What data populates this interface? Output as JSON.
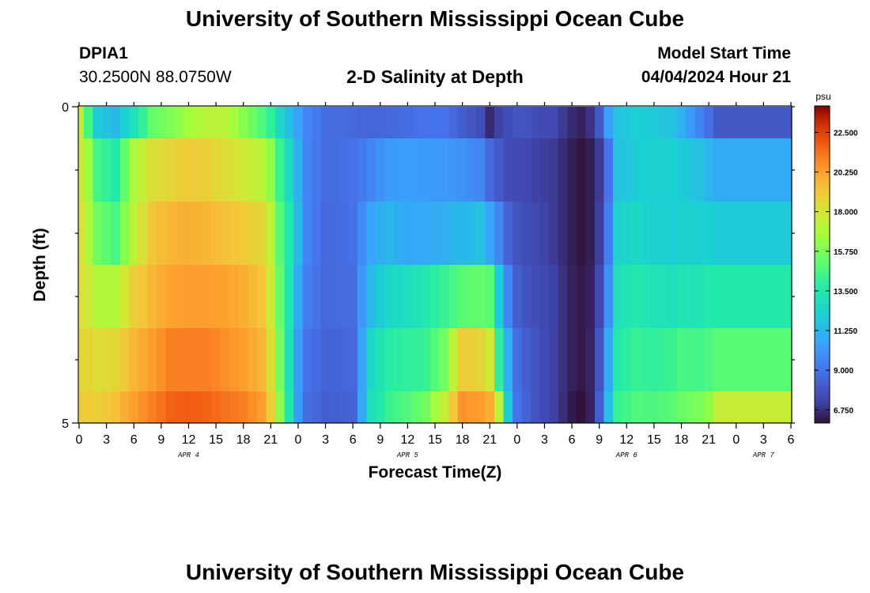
{
  "header": {
    "title": "University of Southern Mississippi Ocean Cube",
    "station": "DPIA1",
    "coords": "30.2500N  88.0750W",
    "plot_title": "2-D Salinity at Depth",
    "start_label": "Model Start Time",
    "start_value": "04/04/2024 Hour 21"
  },
  "footer": {
    "title": "University of Southern Mississippi Ocean Cube"
  },
  "chart_data": {
    "type": "heatmap",
    "xlabel": "Forecast Time(Z)",
    "ylabel": "Depth (ft)",
    "x_hours": [
      0,
      1,
      2,
      3,
      4,
      5,
      6,
      7,
      8,
      9,
      10,
      11,
      12,
      13,
      14,
      15,
      16,
      17,
      18,
      19,
      20,
      21,
      22,
      23,
      24,
      25,
      26,
      27,
      28,
      29,
      30,
      31,
      32,
      33,
      34,
      35,
      36,
      37,
      38,
      39,
      40,
      41,
      42,
      43,
      44,
      45,
      46,
      47,
      48,
      49,
      50,
      51,
      52,
      53,
      54,
      55,
      56,
      57,
      58,
      59,
      60,
      61,
      62,
      63,
      64,
      65,
      66,
      67,
      68,
      69,
      70,
      71,
      72,
      73,
      74,
      75,
      76,
      77,
      78
    ],
    "x_tick_labels": [
      "0",
      "3",
      "6",
      "9",
      "12",
      "15",
      "18",
      "21",
      "0",
      "3",
      "6",
      "9",
      "12",
      "15",
      "18",
      "21",
      "0",
      "3",
      "6",
      "9",
      "12",
      "15",
      "18",
      "21",
      "0",
      "3",
      "6"
    ],
    "date_labels": [
      {
        "label": "APR 4",
        "hour": 12
      },
      {
        "label": "APR 5",
        "hour": 36
      },
      {
        "label": "APR 6",
        "hour": 60
      },
      {
        "label": "APR 7",
        "hour": 75
      }
    ],
    "y_tick_labels": [
      "0",
      "5"
    ],
    "ylim": [
      0,
      5
    ],
    "depth_layers": [
      "0-0.5",
      "0.5-1.5",
      "1.5-2.5",
      "2.5-3.5",
      "3.5-4.5",
      "4.5-5"
    ],
    "colorbar": {
      "unit": "psu",
      "ticks": [
        "22.500",
        "20.250",
        "18.000",
        "15.750",
        "13.500",
        "11.250",
        "9.000",
        "6.750"
      ],
      "range": [
        6.0,
        24.0
      ]
    },
    "keyframes": [
      [
        0,
        [
          17.5,
          17.8,
          18.3,
          18.3,
          18.6,
          19.0
        ]
      ],
      [
        1,
        [
          14.5,
          16.5,
          17.0,
          17.8,
          18.6,
          19.0
        ]
      ],
      [
        2,
        [
          12.0,
          14.5,
          15.5,
          17.0,
          18.3,
          18.8
        ]
      ],
      [
        4,
        [
          11.3,
          13.6,
          14.6,
          17.0,
          18.6,
          19.3
        ]
      ],
      [
        6,
        [
          13.0,
          16.8,
          17.3,
          18.8,
          19.6,
          20.3
        ]
      ],
      [
        8,
        [
          15.2,
          18.3,
          19.2,
          19.6,
          20.3,
          21.0
        ]
      ],
      [
        10,
        [
          15.8,
          18.6,
          19.6,
          20.2,
          21.0,
          21.7
        ]
      ],
      [
        12,
        [
          16.6,
          19.0,
          19.8,
          20.3,
          21.0,
          21.8
        ]
      ],
      [
        14,
        [
          17.2,
          18.8,
          19.6,
          20.3,
          21.0,
          21.7
        ]
      ],
      [
        16,
        [
          17.2,
          18.3,
          19.3,
          20.2,
          20.7,
          21.3
        ]
      ],
      [
        18,
        [
          16.0,
          17.8,
          19.0,
          19.8,
          20.3,
          21.0
        ]
      ],
      [
        20,
        [
          14.8,
          17.2,
          18.6,
          19.2,
          19.6,
          20.3
        ]
      ],
      [
        21,
        [
          14.0,
          16.2,
          17.3,
          17.8,
          18.3,
          19.0
        ]
      ],
      [
        22,
        [
          12.6,
          14.3,
          15.0,
          15.3,
          15.6,
          16.2
        ]
      ],
      [
        23,
        [
          11.5,
          12.8,
          13.5,
          13.3,
          13.0,
          13.3
        ]
      ],
      [
        24,
        [
          10.5,
          11.0,
          11.3,
          10.8,
          10.3,
          10.3
        ]
      ],
      [
        25,
        [
          9.6,
          9.6,
          9.6,
          9.3,
          9.0,
          8.8
        ]
      ],
      [
        27,
        [
          8.8,
          8.7,
          8.6,
          8.6,
          8.4,
          8.2
        ]
      ],
      [
        30,
        [
          8.6,
          8.9,
          8.9,
          8.8,
          8.6,
          8.4
        ]
      ],
      [
        32,
        [
          8.5,
          9.6,
          10.6,
          11.4,
          12.6,
          13.0
        ]
      ],
      [
        34,
        [
          8.6,
          10.3,
          11.3,
          12.6,
          13.8,
          14.3
        ]
      ],
      [
        36,
        [
          8.8,
          10.4,
          10.6,
          12.9,
          14.0,
          14.8
        ]
      ],
      [
        38,
        [
          9.0,
          10.3,
          10.8,
          13.5,
          14.2,
          15.6
        ]
      ],
      [
        40,
        [
          9.0,
          10.2,
          11.0,
          14.2,
          15.6,
          17.6
        ]
      ],
      [
        42,
        [
          8.2,
          10.0,
          11.3,
          15.0,
          19.0,
          20.6
        ]
      ],
      [
        44,
        [
          7.6,
          9.6,
          11.6,
          15.2,
          18.6,
          20.3
        ]
      ],
      [
        45,
        [
          6.6,
          8.6,
          10.6,
          15.0,
          17.8,
          19.8
        ]
      ],
      [
        46,
        [
          7.2,
          8.0,
          9.6,
          12.0,
          14.0,
          17.3
        ]
      ],
      [
        47,
        [
          7.6,
          7.6,
          8.4,
          9.6,
          11.0,
          12.0
        ]
      ],
      [
        48,
        [
          7.8,
          7.5,
          7.8,
          8.2,
          8.8,
          9.0
        ]
      ],
      [
        49,
        [
          7.8,
          7.4,
          7.6,
          7.8,
          8.2,
          8.4
        ]
      ],
      [
        50,
        [
          7.6,
          7.2,
          7.4,
          7.6,
          7.8,
          7.8
        ]
      ],
      [
        52,
        [
          7.4,
          7.0,
          7.0,
          7.2,
          7.2,
          7.2
        ]
      ],
      [
        54,
        [
          6.6,
          6.3,
          6.3,
          6.4,
          6.4,
          6.2
        ]
      ],
      [
        55,
        [
          6.4,
          6.1,
          6.1,
          6.2,
          6.2,
          6.0
        ]
      ],
      [
        56,
        [
          6.8,
          6.3,
          6.3,
          6.4,
          6.5,
          6.4
        ]
      ],
      [
        57,
        [
          8.0,
          7.0,
          7.1,
          7.4,
          7.8,
          8.2
        ]
      ],
      [
        58,
        [
          10.5,
          9.0,
          9.3,
          10.0,
          10.8,
          11.5
        ]
      ],
      [
        59,
        [
          11.6,
          11.6,
          12.4,
          13.0,
          13.6,
          14.2
        ]
      ],
      [
        61,
        [
          12.2,
          12.0,
          12.6,
          13.5,
          14.2,
          14.8
        ]
      ],
      [
        63,
        [
          12.0,
          12.3,
          12.3,
          13.2,
          14.0,
          14.7
        ]
      ],
      [
        65,
        [
          11.6,
          12.2,
          12.2,
          13.0,
          14.3,
          15.0
        ]
      ],
      [
        66,
        [
          11.0,
          12.0,
          12.3,
          13.2,
          14.6,
          15.4
        ]
      ],
      [
        68,
        [
          9.5,
          11.6,
          12.3,
          13.3,
          14.5,
          15.8
        ]
      ],
      [
        69,
        [
          8.8,
          11.2,
          12.2,
          13.6,
          14.7,
          16.2
        ]
      ],
      [
        70,
        [
          8.0,
          10.8,
          12.0,
          13.6,
          15.0,
          17.6
        ]
      ]
    ]
  }
}
